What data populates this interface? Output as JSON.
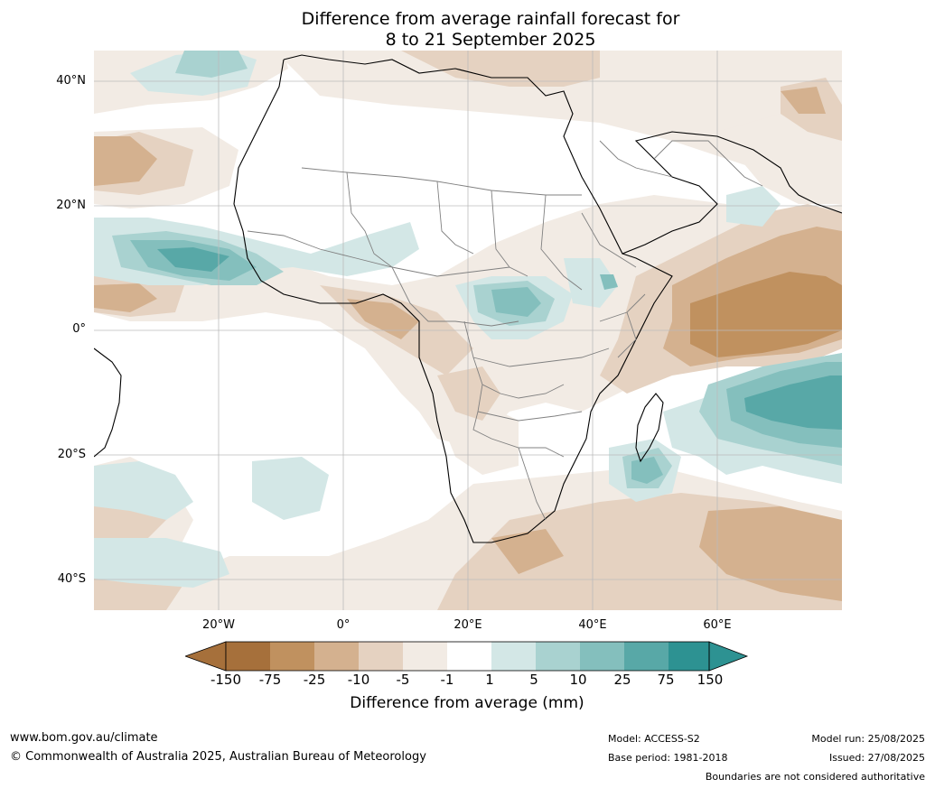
{
  "title": {
    "line1": "Difference from average rainfall forecast for",
    "line2": "8 to 21 September 2025"
  },
  "map": {
    "lat_labels": [
      "40°N",
      "20°N",
      "0°",
      "20°S",
      "40°S"
    ],
    "lon_labels": [
      "20°W",
      "0°",
      "20°E",
      "40°E",
      "60°E"
    ],
    "lat_range": [
      -45,
      45
    ],
    "lon_range": [
      -40,
      80
    ],
    "grid": true,
    "colors": {
      "dry_150": "#a6703b",
      "dry_75": "#c0915f",
      "dry_25": "#d4b18f",
      "dry_10": "#e5d2c1",
      "dry_5": "#f2ebe4",
      "neutral": "#ffffff",
      "wet_5": "#d3e7e6",
      "wet_10": "#a9d2d0",
      "wet_25": "#84bfbd",
      "wet_75": "#58a8a7",
      "wet_150": "#2d9292",
      "coast": "#000000",
      "border": "#808080",
      "grid": "#bbbbbb"
    }
  },
  "colorbar": {
    "ticks": [
      "-150",
      "-75",
      "-25",
      "-10",
      "-5",
      "-1",
      "1",
      "5",
      "10",
      "25",
      "75",
      "150"
    ],
    "colors": [
      "#a6703b",
      "#c0915f",
      "#d4b18f",
      "#e5d2c1",
      "#f2ebe4",
      "#ffffff",
      "#d3e7e6",
      "#a9d2d0",
      "#84bfbd",
      "#58a8a7",
      "#2d9292"
    ],
    "label": "Difference from average (mm)"
  },
  "footer": {
    "website": "www.bom.gov.au/climate",
    "copyright": "© Commonwealth of Australia 2025, Australian Bureau of Meteorology",
    "model": "Model: ACCESS-S2",
    "base_period": "Base period: 1981-2018",
    "model_run": "Model run: 25/08/2025",
    "issued": "Issued: 27/08/2025",
    "disclaimer": "Boundaries are not considered authoritative"
  }
}
